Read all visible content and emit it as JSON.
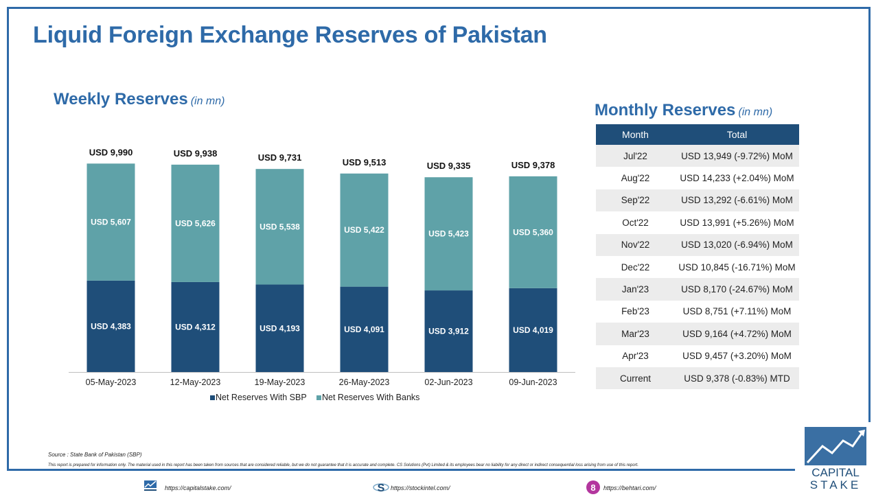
{
  "title": "Liquid Foreign Exchange Reserves of Pakistan",
  "weekly": {
    "title": "Weekly Reserves",
    "unit": "(in mn)"
  },
  "monthly": {
    "title": "Monthly Reserves",
    "unit": "(in mn)",
    "headers": [
      "Month",
      "Total"
    ],
    "rows": [
      {
        "month": "Jul'22",
        "total": "USD 13,949 (-9.72%) MoM"
      },
      {
        "month": "Aug'22",
        "total": "USD 14,233 (+2.04%) MoM"
      },
      {
        "month": "Sep'22",
        "total": "USD 13,292 (-6.61%) MoM"
      },
      {
        "month": "Oct'22",
        "total": "USD 13,991 (+5.26%) MoM"
      },
      {
        "month": "Nov'22",
        "total": "USD 13,020 (-6.94%) MoM"
      },
      {
        "month": "Dec'22",
        "total": "USD 10,845 (-16.71%) MoM"
      },
      {
        "month": "Jan'23",
        "total": "USD 8,170 (-24.67%) MoM"
      },
      {
        "month": "Feb'23",
        "total": "USD 8,751 (+7.11%) MoM"
      },
      {
        "month": "Mar'23",
        "total": "USD 9,164 (+4.72%) MoM"
      },
      {
        "month": "Apr'23",
        "total": "USD 9,457 (+3.20%) MoM"
      },
      {
        "month": "Current",
        "total": "USD 9,378 (-0.83%) MTD"
      }
    ]
  },
  "chart_data": {
    "type": "bar",
    "stacked": true,
    "categories": [
      "05-May-2023",
      "12-May-2023",
      "19-May-2023",
      "26-May-2023",
      "02-Jun-2023",
      "09-Jun-2023"
    ],
    "series": [
      {
        "name": "Net Reserves With SBP",
        "values": [
          4383,
          4312,
          4193,
          4091,
          3912,
          4019
        ],
        "labels": [
          "USD 4,383",
          "USD 4,312",
          "USD 4,193",
          "USD 4,091",
          "USD 3,912",
          "USD 4,019"
        ],
        "color": "#1f4e79"
      },
      {
        "name": "Net Reserves With Banks",
        "values": [
          5607,
          5626,
          5538,
          5422,
          5423,
          5360
        ],
        "labels": [
          "USD 5,607",
          "USD 5,626",
          "USD 5,538",
          "USD 5,422",
          "USD 5,423",
          "USD 5,360"
        ],
        "color": "#5fa2a8"
      }
    ],
    "totals": [
      9990,
      9938,
      9731,
      9513,
      9335,
      9378
    ],
    "total_labels": [
      "USD 9,990",
      "USD 9,938",
      "USD 9,731",
      "USD 9,513",
      "USD 9,335",
      "USD 9,378"
    ],
    "legend_position": "bottom",
    "grid": false,
    "ylim": [
      0,
      10000
    ]
  },
  "footer": {
    "source": "Source : State Bank of Pakistan (SBP)",
    "disclaimer": "This report is prepared for information only. The material used in this report has been taken from sources that are considered reliable, but we do not guarantee that it is accurate and complete. CS Solutions (Pvt) Limited & its employees bear no liability for any direct or indirect consequential loss arising from use of this report.",
    "links": [
      "https://capitalstake.com/",
      "https://stockintel.com/",
      "https://behtari.com/"
    ]
  },
  "logo": {
    "line1": "CAPITAL",
    "line2": "STAKE"
  },
  "colors": {
    "accent": "#2e6aa8",
    "header_bg": "#1f4e79",
    "sbp": "#1f4e79",
    "banks": "#5fa2a8",
    "behtari": "#b3369e"
  }
}
